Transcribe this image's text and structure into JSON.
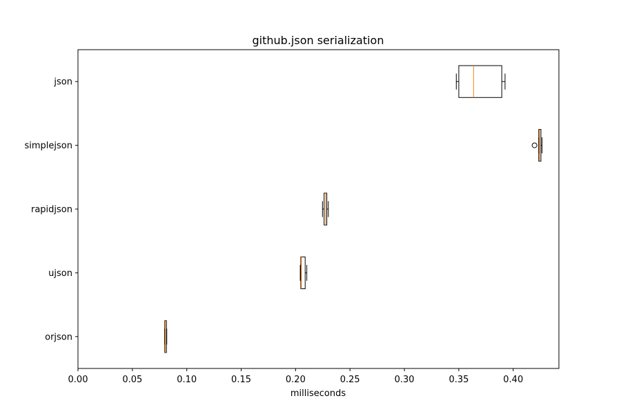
{
  "chart_data": {
    "type": "boxplot",
    "orientation": "horizontal",
    "title": "github.json serialization",
    "xlabel": "milliseconds",
    "ylabel": "",
    "xlim": [
      0.0,
      0.442
    ],
    "xticks": [
      0.0,
      0.05,
      0.1,
      0.15,
      0.2,
      0.25,
      0.3,
      0.35,
      0.4
    ],
    "xtick_labels": [
      "0.00",
      "0.05",
      "0.10",
      "0.15",
      "0.20",
      "0.25",
      "0.30",
      "0.35",
      "0.40"
    ],
    "grid": false,
    "legend": "none",
    "colors": {
      "box": "#000000",
      "median": "#ff7f0e"
    },
    "categories": [
      "orjson",
      "ujson",
      "rapidjson",
      "simplejson",
      "json"
    ],
    "boxes": [
      {
        "label": "orjson",
        "whisker_low": 0.0797,
        "q1": 0.0798,
        "median": 0.0803,
        "q3": 0.0813,
        "whisker_high": 0.0816,
        "outliers": []
      },
      {
        "label": "ujson",
        "whisker_low": 0.2043,
        "q1": 0.2048,
        "median": 0.2053,
        "q3": 0.2088,
        "whisker_high": 0.2103,
        "outliers": []
      },
      {
        "label": "rapidjson",
        "whisker_low": 0.2247,
        "q1": 0.2262,
        "median": 0.2276,
        "q3": 0.2287,
        "whisker_high": 0.2301,
        "outliers": []
      },
      {
        "label": "simplejson",
        "whisker_low": 0.4235,
        "q1": 0.4235,
        "median": 0.4243,
        "q3": 0.4255,
        "whisker_high": 0.4265,
        "outliers": [
          0.4196
        ]
      },
      {
        "label": "json",
        "whisker_low": 0.3477,
        "q1": 0.35,
        "median": 0.3636,
        "q3": 0.3895,
        "whisker_high": 0.3925,
        "outliers": []
      }
    ]
  }
}
